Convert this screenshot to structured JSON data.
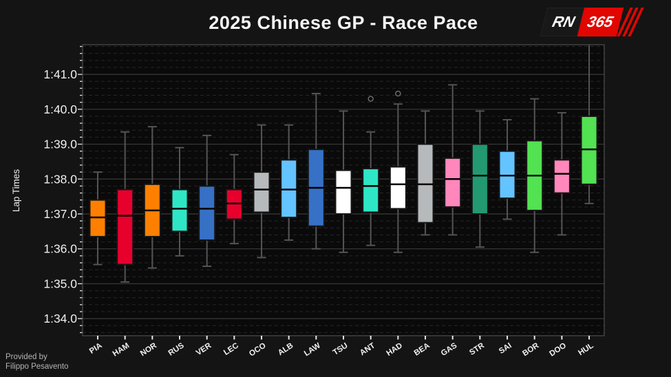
{
  "header": {
    "title": "2025 Chinese GP - Race Pace"
  },
  "logo": {
    "rn": "RN",
    "num": "365",
    "accent_color": "#E10600"
  },
  "footer": {
    "line1": "Provided by",
    "line2": "Filippo Pesavento"
  },
  "chart_data": {
    "type": "box",
    "title": "2025 Chinese GP - Race Pace",
    "ylabel": "Lap Times",
    "value_unit": "lap time in seconds past 1 minute offset; 96.35 means 1:36.35",
    "ylim": [
      93.51,
      101.85
    ],
    "ytick_major_step": 1.0,
    "ytick_minor_step": 0.2,
    "yticks": [
      {
        "value": 101,
        "label": "1:41.0"
      },
      {
        "value": 100,
        "label": "1:40.0"
      },
      {
        "value": 99,
        "label": "1:39.0"
      },
      {
        "value": 98,
        "label": "1:38.0"
      },
      {
        "value": 97,
        "label": "1:37.0"
      },
      {
        "value": 96,
        "label": "1:36.0"
      },
      {
        "value": 95,
        "label": "1:35.0"
      },
      {
        "value": 94,
        "label": "1:34.0"
      }
    ],
    "grid": "horizontal only: solid major lines, dashed minor lines",
    "legend": "none",
    "categories": [
      "PIA",
      "HAM",
      "NOR",
      "RUS",
      "VER",
      "LEC",
      "OCO",
      "ALB",
      "LAW",
      "TSU",
      "ANT",
      "HAD",
      "BEA",
      "GAS",
      "STR",
      "SAI",
      "BOR",
      "DOO",
      "HUL"
    ],
    "series": [
      {
        "abbr": "PIA",
        "color": "#FF8000",
        "low": 95.55,
        "q1": 96.35,
        "median": 96.9,
        "q3": 97.4,
        "high": 98.2,
        "outliers": []
      },
      {
        "abbr": "HAM",
        "color": "#E8002D",
        "low": 95.05,
        "q1": 95.55,
        "median": 96.95,
        "q3": 97.7,
        "high": 99.35,
        "outliers": []
      },
      {
        "abbr": "NOR",
        "color": "#FF8000",
        "low": 95.45,
        "q1": 96.35,
        "median": 97.1,
        "q3": 97.85,
        "high": 99.5,
        "outliers": []
      },
      {
        "abbr": "RUS",
        "color": "#2EE6C6",
        "low": 95.8,
        "q1": 96.5,
        "median": 97.15,
        "q3": 97.7,
        "high": 98.9,
        "outliers": []
      },
      {
        "abbr": "VER",
        "color": "#3671C6",
        "low": 95.5,
        "q1": 96.25,
        "median": 97.15,
        "q3": 97.8,
        "high": 99.25,
        "outliers": []
      },
      {
        "abbr": "LEC",
        "color": "#E8002D",
        "low": 96.15,
        "q1": 96.85,
        "median": 97.3,
        "q3": 97.7,
        "high": 98.7,
        "outliers": []
      },
      {
        "abbr": "OCO",
        "color": "#B6BABD",
        "low": 95.75,
        "q1": 97.05,
        "median": 97.7,
        "q3": 98.2,
        "high": 99.55,
        "outliers": []
      },
      {
        "abbr": "ALB",
        "color": "#64C4FF",
        "low": 96.25,
        "q1": 96.9,
        "median": 97.7,
        "q3": 98.55,
        "high": 99.55,
        "outliers": []
      },
      {
        "abbr": "LAW",
        "color": "#3671C6",
        "low": 96.0,
        "q1": 96.65,
        "median": 97.75,
        "q3": 98.85,
        "high": 100.45,
        "outliers": []
      },
      {
        "abbr": "TSU",
        "color": "#FFFFFF",
        "low": 95.9,
        "q1": 97.0,
        "median": 97.75,
        "q3": 98.25,
        "high": 99.95,
        "outliers": []
      },
      {
        "abbr": "ANT",
        "color": "#2EE6C6",
        "low": 96.1,
        "q1": 97.05,
        "median": 97.8,
        "q3": 98.3,
        "high": 99.35,
        "outliers": [
          100.3
        ]
      },
      {
        "abbr": "HAD",
        "color": "#FFFFFF",
        "low": 95.9,
        "q1": 97.15,
        "median": 97.85,
        "q3": 98.35,
        "high": 100.15,
        "outliers": [
          100.45
        ]
      },
      {
        "abbr": "BEA",
        "color": "#B6BABD",
        "low": 96.4,
        "q1": 96.75,
        "median": 97.85,
        "q3": 99.0,
        "high": 99.95,
        "outliers": []
      },
      {
        "abbr": "GAS",
        "color": "#FF87BC",
        "low": 96.4,
        "q1": 97.2,
        "median": 98.0,
        "q3": 98.6,
        "high": 100.7,
        "outliers": []
      },
      {
        "abbr": "STR",
        "color": "#229971",
        "low": 96.05,
        "q1": 97.0,
        "median": 98.1,
        "q3": 99.0,
        "high": 99.95,
        "outliers": []
      },
      {
        "abbr": "SAI",
        "color": "#64C4FF",
        "low": 96.85,
        "q1": 97.45,
        "median": 98.1,
        "q3": 98.8,
        "high": 99.7,
        "outliers": []
      },
      {
        "abbr": "BOR",
        "color": "#52E252",
        "low": 95.9,
        "q1": 97.1,
        "median": 98.1,
        "q3": 99.1,
        "high": 100.3,
        "outliers": []
      },
      {
        "abbr": "DOO",
        "color": "#FF87BC",
        "low": 96.4,
        "q1": 97.6,
        "median": 98.15,
        "q3": 98.55,
        "high": 99.9,
        "outliers": []
      },
      {
        "abbr": "HUL",
        "color": "#52E252",
        "low": 97.3,
        "q1": 97.85,
        "median": 98.85,
        "q3": 99.8,
        "high": 101.9,
        "outliers": []
      }
    ],
    "style_colors": {
      "page_bg": "#141414",
      "plot_bg": "#0a0a0a",
      "spine": "#4a4a4a",
      "grid_major": "#3a3a3a",
      "grid_minor": "#272727",
      "whisker": "#555555",
      "box_edge": "#161616",
      "median_line": "#000000",
      "outlier_edge": "#6a6a6a",
      "tick_mark": "#e8e8e8",
      "text": "#f0f0f0"
    }
  }
}
